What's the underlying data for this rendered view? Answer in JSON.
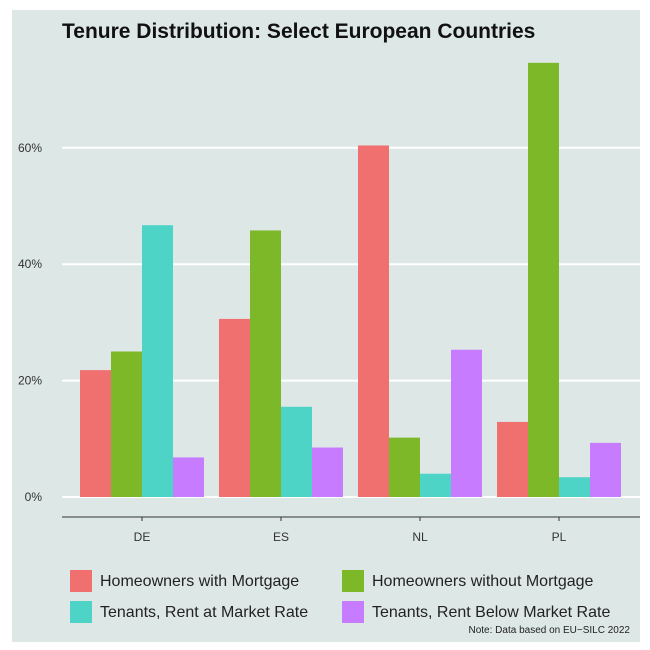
{
  "chart_data": {
    "type": "bar",
    "title": "Tenure Distribution: Select European Countries",
    "xlabel": "",
    "ylabel": "",
    "categories": [
      "DE",
      "ES",
      "NL",
      "PL"
    ],
    "series": [
      {
        "name": "Homeowners with Mortgage",
        "color": "#f07070",
        "values": [
          21.8,
          30.6,
          60.4,
          12.9
        ]
      },
      {
        "name": "Homeowners without Mortgage",
        "color": "#7cb827",
        "values": [
          25.0,
          45.8,
          10.2,
          74.6
        ]
      },
      {
        "name": "Tenants, Rent at Market Rate",
        "color": "#4dd4c6",
        "values": [
          46.7,
          15.5,
          4.0,
          3.4
        ]
      },
      {
        "name": "Tenants, Rent Below Market Rate",
        "color": "#c77cff",
        "values": [
          6.8,
          8.5,
          25.3,
          9.3
        ]
      }
    ],
    "y_ticks": [
      "0%",
      "20%",
      "40%",
      "60%"
    ],
    "ylim": [
      0,
      78
    ],
    "grid": true,
    "legend_position": "bottom"
  },
  "note": "Note: Data based on EU−SILC 2022"
}
